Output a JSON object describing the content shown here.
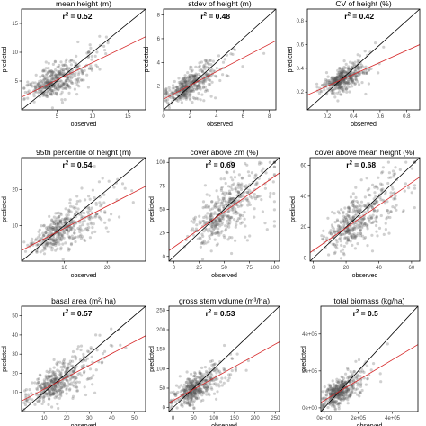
{
  "chart_data": [
    {
      "type": "scatter",
      "title": "mean height (m)",
      "r2": "0.52",
      "xlabel": "observed",
      "ylabel": "predicted",
      "xlim": [
        0,
        17.5
      ],
      "ylim": [
        0,
        17.5
      ],
      "xticks": [
        "5",
        "10",
        "15"
      ],
      "yticks": [
        "5",
        "10",
        "15"
      ],
      "xtick_values": [
        5,
        10,
        15
      ],
      "ytick_values": [
        5,
        10,
        15
      ],
      "fit_line": {
        "intercept": 2.2,
        "slope": 0.6
      },
      "point_cloud": {
        "center": [
          4.5,
          4.8
        ],
        "spread": 2.6,
        "max": 16
      }
    },
    {
      "type": "scatter",
      "title": "stdev of height (m)",
      "r2": "0.48",
      "xlabel": "observed",
      "ylabel": "predicted",
      "xlim": [
        0,
        8.5
      ],
      "ylim": [
        0,
        8.5
      ],
      "xticks": [
        "0",
        "2",
        "4",
        "6",
        "8"
      ],
      "yticks": [
        "2",
        "4",
        "6",
        "8"
      ],
      "xtick_values": [
        0,
        2,
        4,
        6,
        8
      ],
      "ytick_values": [
        2,
        4,
        6,
        8
      ],
      "fit_line": {
        "intercept": 0.9,
        "slope": 0.58
      },
      "point_cloud": {
        "center": [
          1.8,
          1.9
        ],
        "spread": 1.1,
        "max": 8
      }
    },
    {
      "type": "scatter",
      "title": "CV of height (%)",
      "r2": "0.42",
      "xlabel": "observed",
      "ylabel": "predicted",
      "xlim": [
        0.05,
        0.9
      ],
      "ylim": [
        0.05,
        0.9
      ],
      "xticks": [
        "0.2",
        "0.4",
        "0.6",
        "0.8"
      ],
      "yticks": [
        "0.2",
        "0.4",
        "0.6",
        "0.8"
      ],
      "xtick_values": [
        0.2,
        0.4,
        0.6,
        0.8
      ],
      "ytick_values": [
        0.2,
        0.4,
        0.6,
        0.8
      ],
      "fit_line": {
        "intercept": 0.15,
        "slope": 0.5
      },
      "point_cloud": {
        "center": [
          0.32,
          0.32
        ],
        "spread": 0.09,
        "max": 0.8
      }
    },
    {
      "type": "scatter",
      "title": "95th percentile of height (m)",
      "r2": "0.54",
      "xlabel": "observed",
      "ylabel": "predicted",
      "xlim": [
        0,
        29
      ],
      "ylim": [
        0,
        29
      ],
      "xticks": [
        "10",
        "20"
      ],
      "yticks": [
        "10",
        "20"
      ],
      "xtick_values": [
        10,
        20
      ],
      "ytick_values": [
        10,
        20
      ],
      "fit_line": {
        "intercept": 3,
        "slope": 0.62
      },
      "point_cloud": {
        "center": [
          9,
          9
        ],
        "spread": 4.8,
        "max": 27
      }
    },
    {
      "type": "scatter",
      "title": "cover above 2m (%)",
      "r2": "0.69",
      "xlabel": "observed",
      "ylabel": "predicted",
      "xlim": [
        -5,
        105
      ],
      "ylim": [
        -5,
        105
      ],
      "xticks": [
        "0",
        "25",
        "50",
        "75",
        "100"
      ],
      "yticks": [
        "0",
        "25",
        "50",
        "75",
        "100"
      ],
      "xtick_values": [
        0,
        25,
        50,
        75,
        100
      ],
      "ytick_values": [
        0,
        25,
        50,
        75,
        100
      ],
      "fit_line": {
        "intercept": 10,
        "slope": 0.75
      },
      "point_cloud": {
        "center": [
          50,
          46
        ],
        "spread": 22,
        "max": 100
      }
    },
    {
      "type": "scatter",
      "title": "cover above mean height (%)",
      "r2": "0.68",
      "xlabel": "observed",
      "ylabel": "predicted",
      "xlim": [
        -2,
        65
      ],
      "ylim": [
        -2,
        65
      ],
      "xticks": [
        "0",
        "20",
        "40",
        "60"
      ],
      "yticks": [
        "0",
        "20",
        "40",
        "60"
      ],
      "xtick_values": [
        0,
        20,
        40,
        60
      ],
      "ytick_values": [
        0,
        20,
        40,
        60
      ],
      "fit_line": {
        "intercept": 5,
        "slope": 0.73
      },
      "point_cloud": {
        "center": [
          25,
          23
        ],
        "spread": 13,
        "max": 62
      }
    },
    {
      "type": "scatter",
      "title": "basal area (m²/ ha)",
      "r2": "0.57",
      "xlabel": "observed",
      "ylabel": "predicted",
      "xlim": [
        0,
        55
      ],
      "ylim": [
        0,
        55
      ],
      "xticks": [
        "10",
        "20",
        "30",
        "40",
        "50"
      ],
      "yticks": [
        "10",
        "20",
        "30",
        "40",
        "50"
      ],
      "xtick_values": [
        10,
        20,
        30,
        40,
        50
      ],
      "ytick_values": [
        10,
        20,
        30,
        40,
        50
      ],
      "fit_line": {
        "intercept": 5.5,
        "slope": 0.62
      },
      "point_cloud": {
        "center": [
          15,
          15
        ],
        "spread": 8.5,
        "max": 52
      }
    },
    {
      "type": "scatter",
      "title": "gross stem volume (m³/ha)",
      "r2": "0.53",
      "xlabel": "observed",
      "ylabel": "predicted",
      "xlim": [
        -10,
        260
      ],
      "ylim": [
        -10,
        260
      ],
      "xticks": [
        "0",
        "50",
        "100",
        "150",
        "200",
        "250"
      ],
      "yticks": [
        "0",
        "50",
        "100",
        "150",
        "200",
        "250"
      ],
      "xtick_values": [
        0,
        50,
        100,
        150,
        200,
        250
      ],
      "ytick_values": [
        0,
        50,
        100,
        150,
        200,
        250
      ],
      "fit_line": {
        "intercept": 18,
        "slope": 0.58
      },
      "point_cloud": {
        "center": [
          50,
          45
        ],
        "spread": 35,
        "max": 245
      }
    },
    {
      "type": "scatter",
      "title": "total biomass (kg/ha)",
      "r2": "0.5",
      "xlabel": "observed",
      "ylabel": "predicted",
      "xlim": [
        -20000,
        550000
      ],
      "ylim": [
        -20000,
        550000
      ],
      "xticks": [
        "0e+00",
        "2e+05",
        "4e+05"
      ],
      "yticks": [
        "0e+00",
        "2e+05",
        "4e+05"
      ],
      "xtick_values": [
        0,
        200000,
        400000
      ],
      "ytick_values": [
        0,
        200000,
        400000
      ],
      "fit_line": {
        "intercept": 40000,
        "slope": 0.55
      },
      "point_cloud": {
        "center": [
          80000,
          80000
        ],
        "spread": 70000,
        "max": 500000
      }
    }
  ],
  "colors": {
    "points": "#555555",
    "one_to_one_line": "#000000",
    "fit_line": "#d62728",
    "frame": "#000000"
  }
}
